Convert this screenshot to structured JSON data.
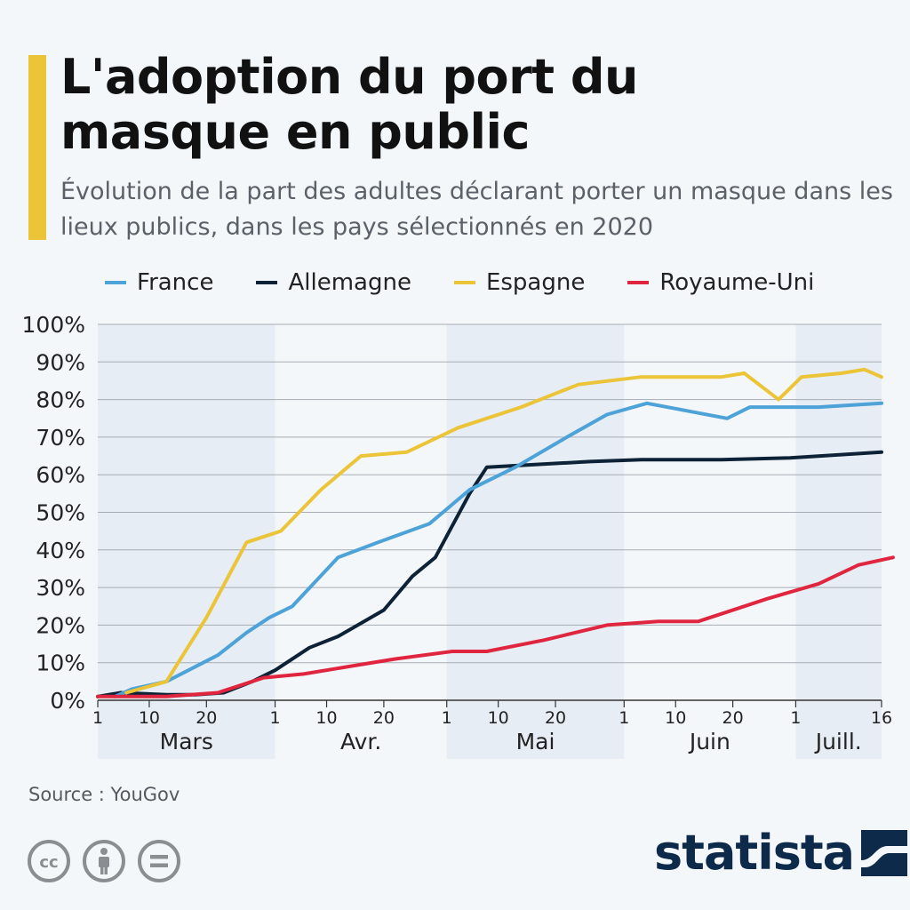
{
  "header": {
    "title": "L'adoption du port du masque en public",
    "subtitle": "Évolution de la part des adultes déclarant porter un masque dans les lieux publics, dans les pays sélectionnés en 2020"
  },
  "footer": {
    "source": "Source : YouGov",
    "brand": "statista"
  },
  "icons": [
    "cc-icon",
    "attribution-icon",
    "no-derivatives-icon",
    "statista-logo-icon"
  ],
  "chart_data": {
    "type": "line",
    "title": "L'adoption du port du masque en public",
    "ylim": [
      0,
      100
    ],
    "yticks": [
      "0%",
      "10%",
      "20%",
      "30%",
      "40%",
      "50%",
      "60%",
      "70%",
      "80%",
      "90%",
      "100%"
    ],
    "xlim": [
      "2020-03-01",
      "2020-07-16"
    ],
    "xticks": [
      {
        "date": "2020-03-01",
        "label": "1"
      },
      {
        "date": "2020-03-10",
        "label": "10"
      },
      {
        "date": "2020-03-20",
        "label": "20"
      },
      {
        "date": "2020-04-01",
        "label": "1"
      },
      {
        "date": "2020-04-10",
        "label": "10"
      },
      {
        "date": "2020-04-20",
        "label": "20"
      },
      {
        "date": "2020-05-01",
        "label": "1"
      },
      {
        "date": "2020-05-10",
        "label": "10"
      },
      {
        "date": "2020-05-20",
        "label": "20"
      },
      {
        "date": "2020-06-01",
        "label": "1"
      },
      {
        "date": "2020-06-10",
        "label": "10"
      },
      {
        "date": "2020-06-20",
        "label": "20"
      },
      {
        "date": "2020-07-01",
        "label": "1"
      },
      {
        "date": "2020-07-16",
        "label": "16"
      }
    ],
    "months": [
      {
        "label": "Mars",
        "start": "2020-03-01",
        "end": "2020-04-01",
        "shaded": true
      },
      {
        "label": "Avr.",
        "start": "2020-04-01",
        "end": "2020-05-01",
        "shaded": false
      },
      {
        "label": "Mai",
        "start": "2020-05-01",
        "end": "2020-06-01",
        "shaded": true
      },
      {
        "label": "Juin",
        "start": "2020-06-01",
        "end": "2020-07-01",
        "shaded": false
      },
      {
        "label": "Juill.",
        "start": "2020-07-01",
        "end": "2020-07-16",
        "shaded": true
      }
    ],
    "grid": true,
    "legend_position": "top",
    "series": [
      {
        "name": "France",
        "color": "#4da2d8",
        "points": [
          [
            "2020-03-04",
            1
          ],
          [
            "2020-03-07",
            3
          ],
          [
            "2020-03-13",
            5
          ],
          [
            "2020-03-22",
            12
          ],
          [
            "2020-03-27",
            18
          ],
          [
            "2020-03-31",
            22
          ],
          [
            "2020-04-04",
            25
          ],
          [
            "2020-04-12",
            38
          ],
          [
            "2020-04-19",
            42
          ],
          [
            "2020-04-28",
            47
          ],
          [
            "2020-05-05",
            56
          ],
          [
            "2020-05-13",
            62
          ],
          [
            "2020-05-22",
            70
          ],
          [
            "2020-05-29",
            76
          ],
          [
            "2020-06-05",
            79
          ],
          [
            "2020-06-12",
            77
          ],
          [
            "2020-06-19",
            75
          ],
          [
            "2020-06-23",
            78
          ],
          [
            "2020-06-30",
            78
          ],
          [
            "2020-07-05",
            78
          ],
          [
            "2020-07-16",
            79
          ]
        ]
      },
      {
        "name": "Allemagne",
        "color": "#0d2236",
        "points": [
          [
            "2020-03-01",
            1
          ],
          [
            "2020-03-05",
            2
          ],
          [
            "2020-03-13",
            1.5
          ],
          [
            "2020-03-18",
            1.5
          ],
          [
            "2020-03-23",
            2
          ],
          [
            "2020-03-28",
            5
          ],
          [
            "2020-04-01",
            8
          ],
          [
            "2020-04-07",
            14
          ],
          [
            "2020-04-12",
            17
          ],
          [
            "2020-04-20",
            24
          ],
          [
            "2020-04-25",
            33
          ],
          [
            "2020-04-29",
            38
          ],
          [
            "2020-05-05",
            55
          ],
          [
            "2020-05-08",
            62
          ],
          [
            "2020-05-26",
            63.5
          ],
          [
            "2020-06-04",
            64
          ],
          [
            "2020-06-18",
            64
          ],
          [
            "2020-06-30",
            64.5
          ],
          [
            "2020-07-16",
            66
          ]
        ]
      },
      {
        "name": "Espagne",
        "color": "#ecc438",
        "points": [
          [
            "2020-03-06",
            2
          ],
          [
            "2020-03-13",
            5
          ],
          [
            "2020-03-20",
            22
          ],
          [
            "2020-03-27",
            42
          ],
          [
            "2020-04-02",
            45
          ],
          [
            "2020-04-09",
            56
          ],
          [
            "2020-04-16",
            65
          ],
          [
            "2020-04-24",
            66
          ],
          [
            "2020-05-03",
            72.5
          ],
          [
            "2020-05-14",
            78
          ],
          [
            "2020-05-24",
            84
          ],
          [
            "2020-06-04",
            86
          ],
          [
            "2020-06-12",
            86
          ],
          [
            "2020-06-18",
            86
          ],
          [
            "2020-06-22",
            87
          ],
          [
            "2020-06-28",
            80
          ],
          [
            "2020-07-02",
            86
          ],
          [
            "2020-07-09",
            87
          ],
          [
            "2020-07-13",
            88
          ],
          [
            "2020-07-16",
            86
          ]
        ]
      },
      {
        "name": "Royaume-Uni",
        "color": "#e0263f",
        "points": [
          [
            "2020-03-01",
            1
          ],
          [
            "2020-03-09",
            1
          ],
          [
            "2020-03-13",
            1
          ],
          [
            "2020-03-22",
            2
          ],
          [
            "2020-03-30",
            6
          ],
          [
            "2020-04-06",
            7
          ],
          [
            "2020-04-14",
            9
          ],
          [
            "2020-04-22",
            11
          ],
          [
            "2020-05-02",
            13
          ],
          [
            "2020-05-08",
            13
          ],
          [
            "2020-05-18",
            16
          ],
          [
            "2020-05-29",
            20
          ],
          [
            "2020-06-07",
            21
          ],
          [
            "2020-06-14",
            21
          ],
          [
            "2020-06-26",
            27
          ],
          [
            "2020-07-05",
            31
          ],
          [
            "2020-07-12",
            36
          ],
          [
            "2020-07-18",
            38
          ]
        ]
      }
    ]
  }
}
